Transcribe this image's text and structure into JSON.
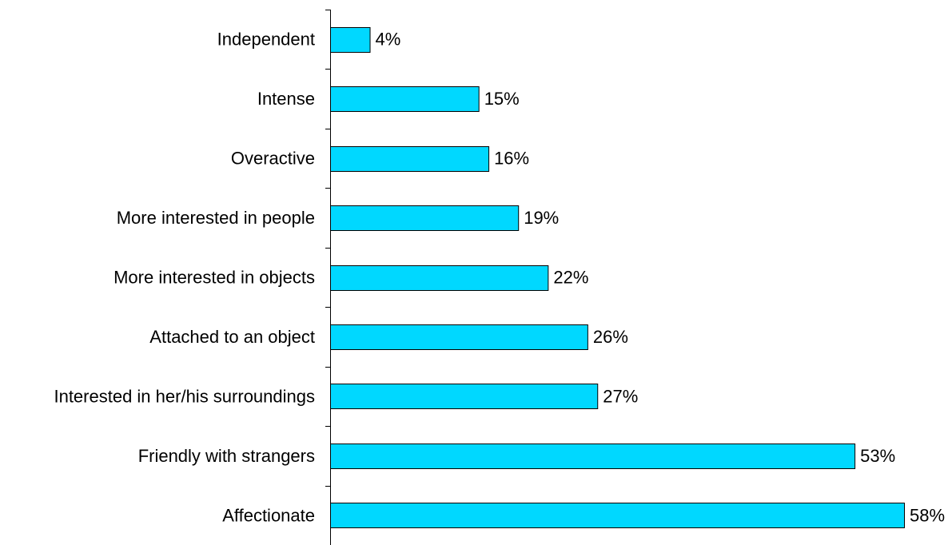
{
  "chart_data": {
    "type": "bar",
    "orientation": "horizontal",
    "title": "",
    "xlabel": "",
    "ylabel": "",
    "categories": [
      "Independent",
      "Intense",
      "Overactive",
      "More interested in people",
      "More interested in objects",
      "Attached to an object",
      "Interested in her/his surroundings",
      "Friendly with strangers",
      "Affectionate"
    ],
    "values": [
      4,
      15,
      16,
      19,
      22,
      26,
      27,
      53,
      58
    ],
    "value_labels": [
      "4%",
      "15%",
      "16%",
      "19%",
      "22%",
      "26%",
      "27%",
      "53%",
      "58%"
    ],
    "unit": "%",
    "xlim": [
      0,
      58
    ],
    "grid": false,
    "legend": "none",
    "bar_color": "#00D8FF",
    "bar_outline_color": "#000000"
  }
}
